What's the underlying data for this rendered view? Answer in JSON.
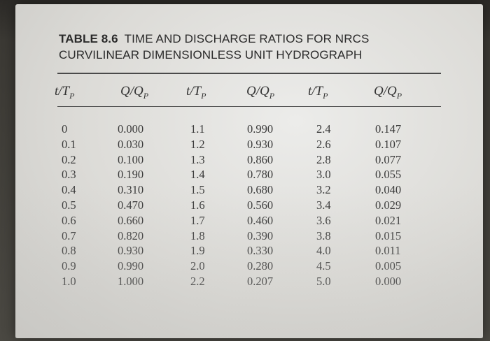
{
  "table": {
    "number": "TABLE 8.6",
    "title_line1": "TIME AND DISCHARGE RATIOS FOR NRCS",
    "title_line2": "CURVILINEAR DIMENSIONLESS UNIT HYDROGRAPH",
    "headers": [
      {
        "main": "t/T",
        "sub": "P"
      },
      {
        "main": "Q/Q",
        "sub": "P"
      },
      {
        "main": "t/T",
        "sub": "P"
      },
      {
        "main": "Q/Q",
        "sub": "P"
      },
      {
        "main": "t/T",
        "sub": "P"
      },
      {
        "main": "Q/Q",
        "sub": "P"
      }
    ],
    "columns": [
      [
        "0",
        "0.1",
        "0.2",
        "0.3",
        "0.4",
        "0.5",
        "0.6",
        "0.7",
        "0.8",
        "0.9",
        "1.0"
      ],
      [
        "0.000",
        "0.030",
        "0.100",
        "0.190",
        "0.310",
        "0.470",
        "0.660",
        "0.820",
        "0.930",
        "0.990",
        "1.000"
      ],
      [
        "1.1",
        "1.2",
        "1.3",
        "1.4",
        "1.5",
        "1.6",
        "1.7",
        "1.8",
        "1.9",
        "2.0",
        "2.2"
      ],
      [
        "0.990",
        "0.930",
        "0.860",
        "0.780",
        "0.680",
        "0.560",
        "0.460",
        "0.390",
        "0.330",
        "0.280",
        "0.207"
      ],
      [
        "2.4",
        "2.6",
        "2.8",
        "3.0",
        "3.2",
        "3.4",
        "3.6",
        "3.8",
        "4.0",
        "4.5",
        "5.0"
      ],
      [
        "0.147",
        "0.107",
        "0.077",
        "0.055",
        "0.040",
        "0.029",
        "0.021",
        "0.015",
        "0.011",
        "0.005",
        "0.000"
      ]
    ]
  }
}
